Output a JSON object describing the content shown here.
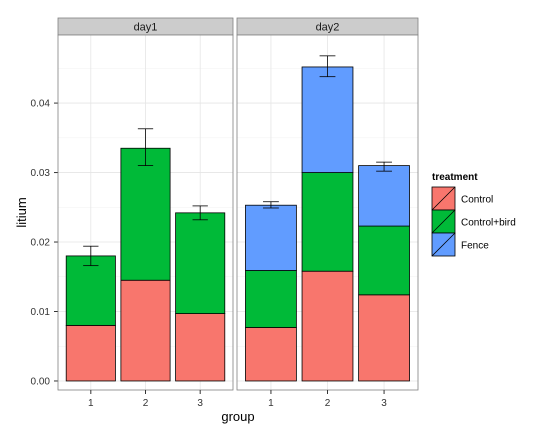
{
  "chart_data": {
    "type": "bar",
    "stacked": true,
    "xlabel": "group",
    "ylabel": "litium",
    "ylim": [
      -0.0013,
      0.0498
    ],
    "yticks": [
      0.0,
      0.01,
      0.02,
      0.03,
      0.04
    ],
    "ytick_labels": [
      "0.00",
      "0.01",
      "0.02",
      "0.03",
      "0.04"
    ],
    "categories": [
      "1",
      "2",
      "3"
    ],
    "grid": true,
    "legend": {
      "title": "treatment",
      "placement": "right",
      "entries": [
        {
          "label": "Control",
          "color": "#F8766D"
        },
        {
          "label": "Control+bird",
          "color": "#00BA38"
        },
        {
          "label": "Fence",
          "color": "#619CFF"
        }
      ]
    },
    "facets": [
      {
        "label": "day1",
        "series": [
          {
            "name": "Control",
            "values": [
              0.008,
              0.0145,
              0.0097
            ]
          },
          {
            "name": "Control+bird",
            "values": [
              0.01,
              0.019,
              0.0145
            ]
          },
          {
            "name": "Fence",
            "values": [
              0,
              0,
              0
            ]
          }
        ],
        "errorbars": [
          [
            0.0166,
            0.0194
          ],
          [
            0.031,
            0.0363
          ],
          [
            0.0232,
            0.0252
          ]
        ]
      },
      {
        "label": "day2",
        "series": [
          {
            "name": "Control",
            "values": [
              0.0077,
              0.0158,
              0.0124
            ]
          },
          {
            "name": "Control+bird",
            "values": [
              0.0082,
              0.0142,
              0.0099
            ]
          },
          {
            "name": "Fence",
            "values": [
              0.0094,
              0.0152,
              0.0087
            ]
          }
        ],
        "errorbars": [
          [
            0.0249,
            0.0258
          ],
          [
            0.0438,
            0.0468
          ],
          [
            0.0302,
            0.0315
          ]
        ]
      }
    ]
  }
}
